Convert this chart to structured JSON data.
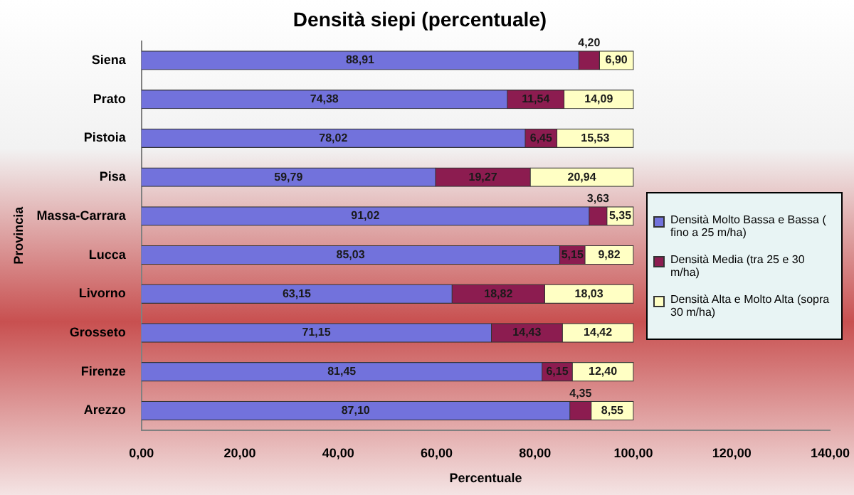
{
  "chart_data": {
    "type": "bar",
    "title": "Densità siepi (percentuale)",
    "xlabel": "Percentuale",
    "ylabel": "Provincia",
    "orientation": "horizontal",
    "stacked": true,
    "categories": [
      "Siena",
      "Prato",
      "Pistoia",
      "Pisa",
      "Massa-Carrara",
      "Lucca",
      "Livorno",
      "Grosseto",
      "Firenze",
      "Arezzo"
    ],
    "series": [
      {
        "name": "Densità Molto Bassa e Bassa ( fino a 25 m/ha)",
        "color": "#7272dc",
        "values": [
          88.91,
          74.38,
          78.02,
          59.79,
          91.02,
          85.03,
          63.15,
          71.15,
          81.45,
          87.1
        ],
        "value_labels": [
          "88,91",
          "74,38",
          "78,02",
          "59,79",
          "91,02",
          "85,03",
          "63,15",
          "71,15",
          "81,45",
          "87,10"
        ]
      },
      {
        "name": "Densità Media (tra 25 e 30 m/ha)",
        "color": "#8c1c50",
        "values": [
          4.2,
          11.54,
          6.45,
          19.27,
          3.63,
          5.15,
          18.82,
          14.43,
          6.15,
          4.35
        ],
        "value_labels": [
          "4,20",
          "11,54",
          "6,45",
          "19,27",
          "3,63",
          "5,15",
          "18,82",
          "14,43",
          "6,15",
          "4,35"
        ]
      },
      {
        "name": "Densità Alta e Molto Alta (sopra 30 m/ha)",
        "color": "#ffffc4",
        "values": [
          6.9,
          14.09,
          15.53,
          20.94,
          5.35,
          9.82,
          18.03,
          14.42,
          12.4,
          8.55
        ],
        "value_labels": [
          "6,90",
          "14,09",
          "15,53",
          "20,94",
          "5,35",
          "9,82",
          "18,03",
          "14,42",
          "12,40",
          "8,55"
        ]
      }
    ],
    "xlim": [
      0,
      140
    ],
    "xticks": [
      {
        "value": 0,
        "label": "0,00"
      },
      {
        "value": 20,
        "label": "20,00"
      },
      {
        "value": 40,
        "label": "40,00"
      },
      {
        "value": 60,
        "label": "60,00"
      },
      {
        "value": 80,
        "label": "80,00"
      },
      {
        "value": 100,
        "label": "100,00"
      },
      {
        "value": 120,
        "label": "120,00"
      },
      {
        "value": 140,
        "label": "140,00"
      }
    ],
    "grid": false,
    "legend": "right"
  }
}
